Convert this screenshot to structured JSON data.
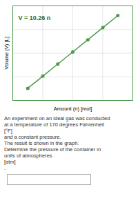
{
  "chart_data": {
    "type": "line",
    "xlabel": "Amount (n) [mol]",
    "ylabel": "Volume (V) [L]",
    "x": [
      0.5,
      1.0,
      1.5,
      2.0,
      2.5,
      3.0,
      3.5
    ],
    "values": [
      5.13,
      10.26,
      15.39,
      20.52,
      25.65,
      30.78,
      35.91
    ],
    "color": "#4a9a4a",
    "marker": "circle",
    "xlim": [
      0,
      4
    ],
    "xticks": [
      0,
      1,
      2,
      3,
      4
    ],
    "ylim": [
      0,
      40
    ],
    "yticks": [
      0,
      10,
      20,
      30,
      40
    ],
    "grid": true,
    "tick_labels": false,
    "annotations": [
      "V = 10.26 n"
    ],
    "text_lines": [
      "An experiment on an ideal gas was conducted",
      "at a temperature of 170 degrees Fahrenheit",
      "[°F]",
      "and a constant pressure.",
      "The result is shown in the graph.",
      "Determine the pressure of the container in",
      "units of atmospheres",
      "[atm]",
      "."
    ]
  }
}
